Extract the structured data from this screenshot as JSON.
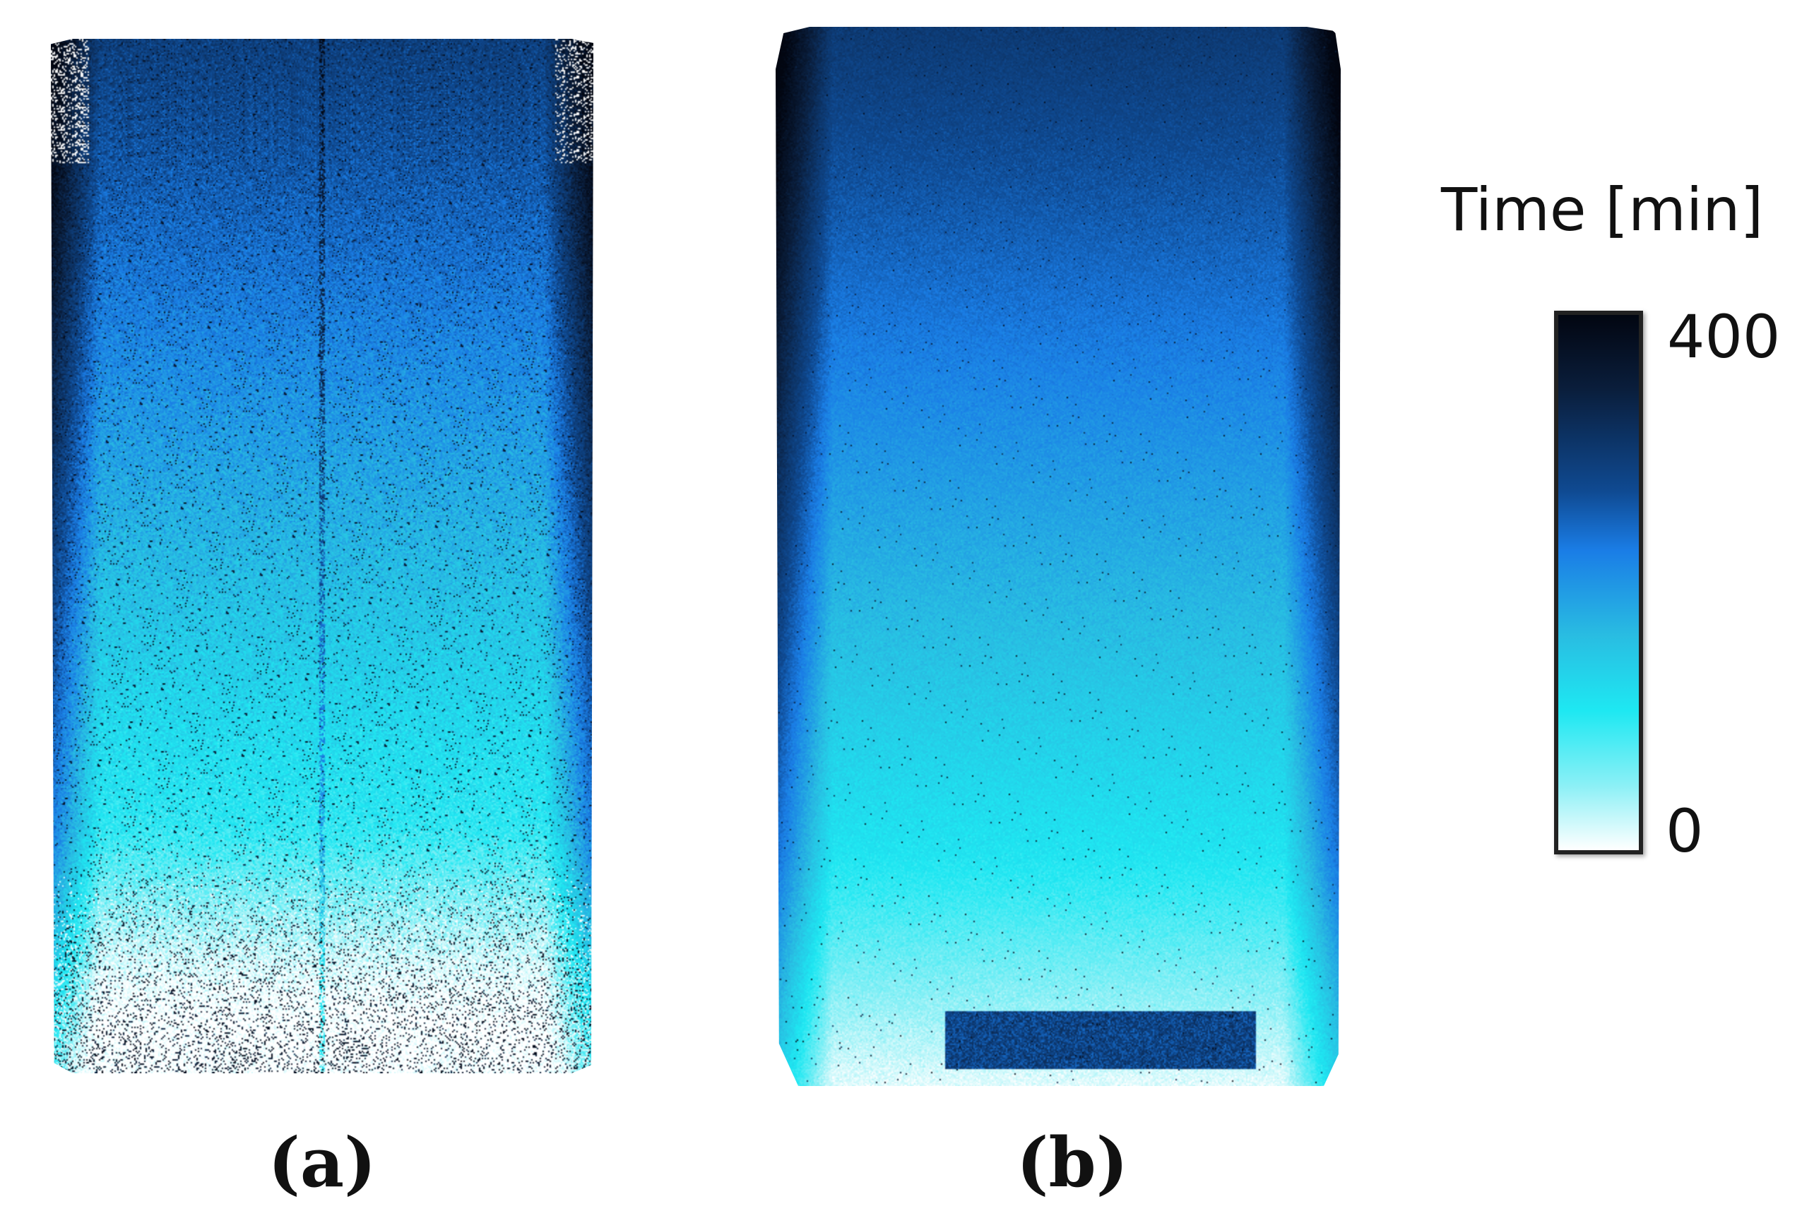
{
  "figure": {
    "panels": [
      {
        "id": "a",
        "label": "(a)"
      },
      {
        "id": "b",
        "label": "(b)"
      }
    ],
    "colorbar": {
      "title": "Time [min]",
      "max_label": "400",
      "min_label": "0",
      "min_value": 0,
      "max_value": 400,
      "colors": [
        "#ffffff",
        "#8cf0f6",
        "#1ee8f2",
        "#29bde2",
        "#1a7de6",
        "#0f4a92",
        "#0a1e3c",
        "#020611"
      ]
    }
  }
}
